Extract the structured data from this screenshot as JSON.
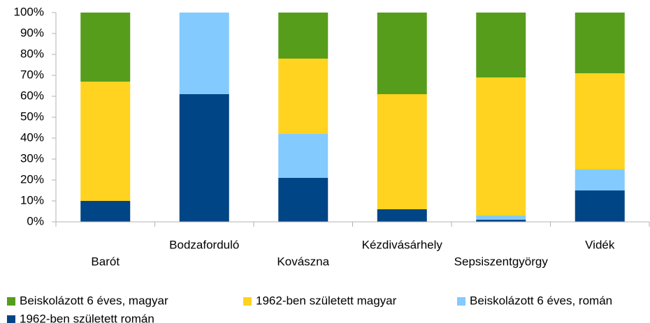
{
  "chart_data": {
    "type": "stacked_bar",
    "categories": [
      "Barót",
      "Bodzaforduló",
      "Kovászna",
      "Kézdivásárhely",
      "Sepsiszentgyörgy",
      "Vidék"
    ],
    "series": [
      {
        "name": "Beiskolázott 6 éves, magyar",
        "color": "#579d1c",
        "values": [
          33,
          0,
          22,
          39,
          31,
          29
        ]
      },
      {
        "name": "1962-ben született magyar",
        "color": "#ffd320",
        "values": [
          57,
          0,
          36,
          55,
          66,
          46
        ]
      },
      {
        "name": "Beiskolázott 6 éves, román",
        "color": "#83caff",
        "values": [
          0,
          39,
          21,
          0,
          2,
          10
        ]
      },
      {
        "name": "1962-ben született román",
        "color": "#004586",
        "values": [
          10,
          61,
          21,
          6,
          1,
          15
        ]
      }
    ],
    "ylim": [
      0,
      100
    ],
    "yticks": [
      {
        "value": 0,
        "label": "0%"
      },
      {
        "value": 10,
        "label": "10%"
      },
      {
        "value": 20,
        "label": "20%"
      },
      {
        "value": 30,
        "label": "30%"
      },
      {
        "value": 40,
        "label": "40%"
      },
      {
        "value": 50,
        "label": "50%"
      },
      {
        "value": 60,
        "label": "60%"
      },
      {
        "value": 70,
        "label": "70%"
      },
      {
        "value": 80,
        "label": "80%"
      },
      {
        "value": 90,
        "label": "90%"
      },
      {
        "value": 100,
        "label": "100%"
      }
    ],
    "legend": "bottom",
    "grid": false
  }
}
